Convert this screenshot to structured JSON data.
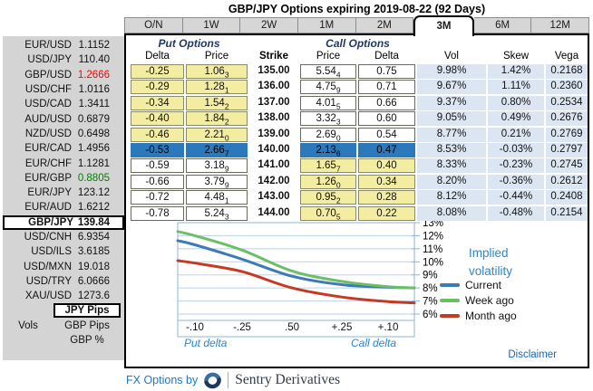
{
  "title": "GBP/JPY Options expiring 2019-08-22 (92 Days)",
  "tabs": {
    "items": [
      "O/N",
      "1W",
      "2W",
      "1M",
      "2M",
      "3M",
      "6M",
      "12M"
    ],
    "selected": "3M"
  },
  "sidebar": {
    "pairs": [
      {
        "name": "EUR/USD",
        "value": "1.1152",
        "color": "default"
      },
      {
        "name": "USD/JPY",
        "value": "110.40",
        "color": "default"
      },
      {
        "name": "GBP/USD",
        "value": "1.2666",
        "color": "red"
      },
      {
        "name": "USD/CHF",
        "value": "1.0116",
        "color": "default"
      },
      {
        "name": "USD/CAD",
        "value": "1.3411",
        "color": "default"
      },
      {
        "name": "AUD/USD",
        "value": "0.6879",
        "color": "default"
      },
      {
        "name": "NZD/USD",
        "value": "0.6498",
        "color": "default"
      },
      {
        "name": "EUR/CAD",
        "value": "1.4956",
        "color": "default"
      },
      {
        "name": "EUR/CHF",
        "value": "1.1281",
        "color": "default"
      },
      {
        "name": "EUR/GBP",
        "value": "0.8805",
        "color": "green"
      },
      {
        "name": "EUR/JPY",
        "value": "123.12",
        "color": "default"
      },
      {
        "name": "EUR/AUD",
        "value": "1.6212",
        "color": "default"
      },
      {
        "name": "GBP/JPY",
        "value": "139.84",
        "color": "default",
        "selected": true
      },
      {
        "name": "USD/CNH",
        "value": "6.9354",
        "color": "default"
      },
      {
        "name": "USD/ILS",
        "value": "3.6185",
        "color": "default"
      },
      {
        "name": "USD/MXN",
        "value": "19.018",
        "color": "default"
      },
      {
        "name": "USD/TRY",
        "value": "6.0666",
        "color": "default"
      },
      {
        "name": "XAU/USD",
        "value": "1273.6",
        "color": "default"
      }
    ],
    "vols_label": "Vols",
    "vol_modes": [
      {
        "label": "JPY Pips",
        "selected": true
      },
      {
        "label": "GBP Pips",
        "selected": false
      },
      {
        "label": "GBP %",
        "selected": false
      }
    ]
  },
  "table": {
    "put_header": "Put Options",
    "call_header": "Call Options",
    "columns": {
      "delta": "Delta",
      "price": "Price",
      "strike": "Strike",
      "vol": "Vol",
      "skew": "Skew",
      "vega": "Vega"
    },
    "rows": [
      {
        "put_delta": "-0.25",
        "put_price": "1.06|3",
        "strike": "135.00",
        "call_price": "5.54|4",
        "call_delta": "0.75",
        "vol": "9.98%",
        "skew": "1.42%",
        "vega": "0.2168",
        "zone": "put"
      },
      {
        "put_delta": "-0.29",
        "put_price": "1.28|1",
        "strike": "136.00",
        "call_price": "4.75|9",
        "call_delta": "0.71",
        "vol": "9.67%",
        "skew": "1.11%",
        "vega": "0.2360",
        "zone": "put"
      },
      {
        "put_delta": "-0.34",
        "put_price": "1.54|2",
        "strike": "137.00",
        "call_price": "4.01|5",
        "call_delta": "0.66",
        "vol": "9.37%",
        "skew": "0.80%",
        "vega": "0.2534",
        "zone": "put"
      },
      {
        "put_delta": "-0.40",
        "put_price": "1.84|2",
        "strike": "138.00",
        "call_price": "3.32|3",
        "call_delta": "0.60",
        "vol": "9.05%",
        "skew": "0.49%",
        "vega": "0.2676",
        "zone": "put"
      },
      {
        "put_delta": "-0.46",
        "put_price": "2.21|0",
        "strike": "139.00",
        "call_price": "2.69|0",
        "call_delta": "0.54",
        "vol": "8.77%",
        "skew": "0.21%",
        "vega": "0.2769",
        "zone": "put"
      },
      {
        "put_delta": "-0.53",
        "put_price": "2.66|7",
        "strike": "140.00",
        "call_price": "2.13|6",
        "call_delta": "0.47",
        "vol": "8.53%",
        "skew": "-0.03%",
        "vega": "0.2797",
        "zone": "atm"
      },
      {
        "put_delta": "-0.59",
        "put_price": "3.18|9",
        "strike": "141.00",
        "call_price": "1.65|7",
        "call_delta": "0.40",
        "vol": "8.33%",
        "skew": "-0.23%",
        "vega": "0.2745",
        "zone": "call"
      },
      {
        "put_delta": "-0.66",
        "put_price": "3.79|9",
        "strike": "142.00",
        "call_price": "1.26|0",
        "call_delta": "0.34",
        "vol": "8.20%",
        "skew": "-0.36%",
        "vega": "0.2612",
        "zone": "call"
      },
      {
        "put_delta": "-0.72",
        "put_price": "4.48|1",
        "strike": "143.00",
        "call_price": "0.95|2",
        "call_delta": "0.28",
        "vol": "8.12%",
        "skew": "-0.44%",
        "vega": "0.2408",
        "zone": "call"
      },
      {
        "put_delta": "-0.78",
        "put_price": "5.24|3",
        "strike": "144.00",
        "call_price": "0.70|5",
        "call_delta": "0.22",
        "vol": "8.08%",
        "skew": "-0.48%",
        "vega": "0.2154",
        "zone": "call"
      }
    ]
  },
  "chart_data": {
    "type": "line",
    "title": "Implied volatility",
    "x_tick_labels": [
      "-.10",
      "-.25",
      ".50",
      "+.25",
      "+.10"
    ],
    "x_axis_left_label": "Put delta",
    "x_axis_right_label": "Call delta",
    "y_tick_labels": [
      "13%",
      "12%",
      "11%",
      "10%",
      "9%",
      "8%",
      "7%",
      "6%"
    ],
    "ylim": [
      6,
      13
    ],
    "grid": true,
    "legend_position": "right",
    "series": [
      {
        "name": "Current",
        "color": "#3e79b8",
        "values": [
          11.3,
          10.2,
          8.9,
          8.25,
          8.05
        ]
      },
      {
        "name": "Week ago",
        "color": "#6cbf66",
        "values": [
          12.0,
          10.9,
          9.3,
          8.5,
          8.1
        ]
      },
      {
        "name": "Month ago",
        "color": "#c43b22",
        "values": [
          9.9,
          9.25,
          8.0,
          7.3,
          6.95
        ]
      }
    ]
  },
  "disclaimer": "Disclaimer",
  "footer": {
    "prefix": "FX Options by",
    "brand": "Sentry Derivatives"
  },
  "colors": {
    "selected_row": "#2b78bc",
    "otm_cell": "#f3eda1",
    "greeks_column": "#dce6f2",
    "quote_down_red": "#ff0000",
    "quote_up_green": "#008000",
    "chart_accent_blue": "#2e86c8",
    "brand_navy": "#2f3b52"
  }
}
